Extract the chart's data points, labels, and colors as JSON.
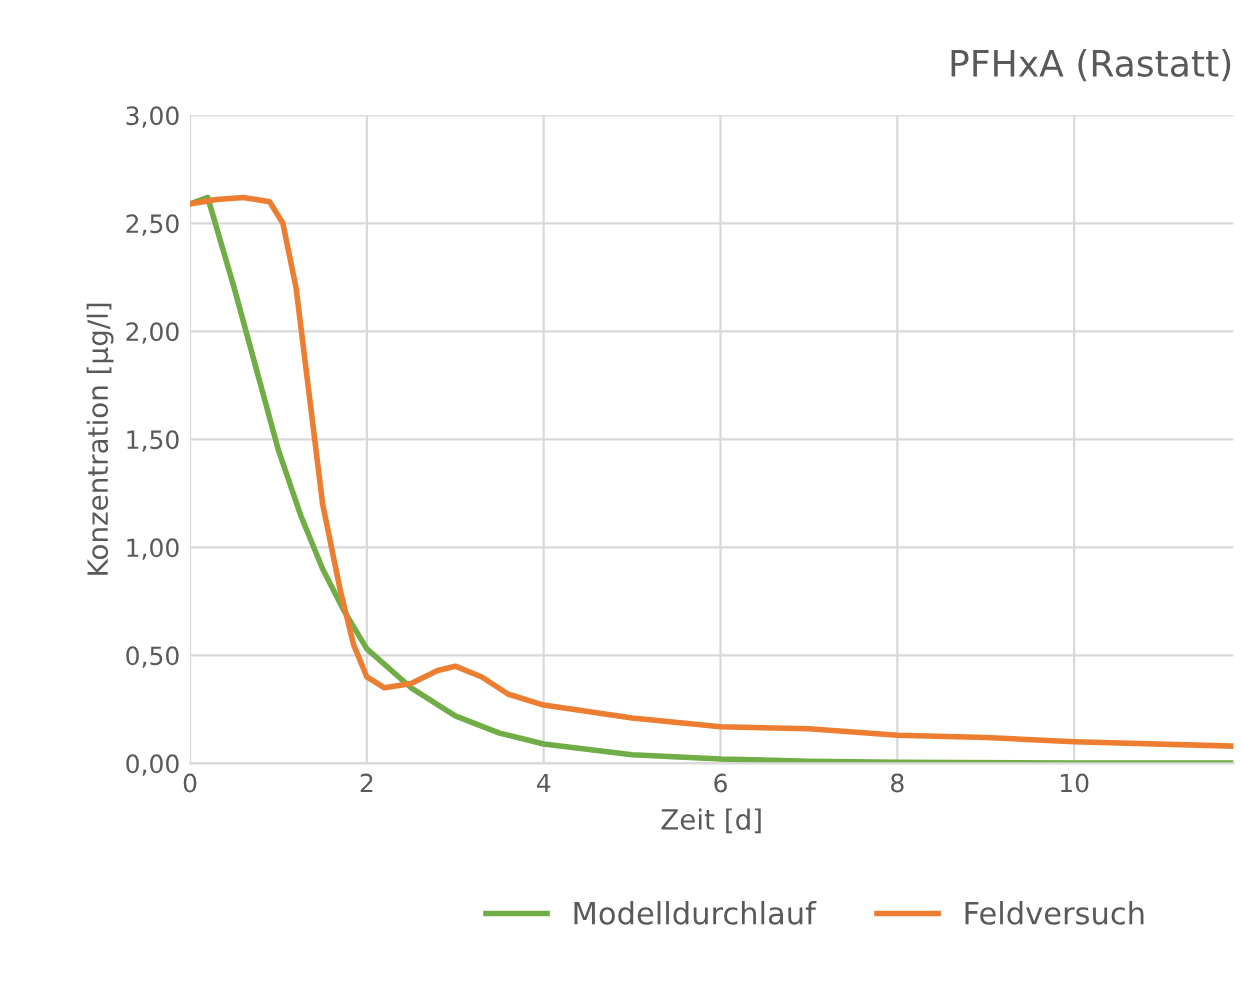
{
  "chart_data": {
    "type": "line",
    "title": "PFHxA (Rastatt)",
    "xlabel": "Zeit [d]",
    "ylabel": "Konzentration [µg/l]",
    "xlim": [
      0,
      11.8
    ],
    "xticks": [
      0,
      2,
      4,
      6,
      8,
      10
    ],
    "ylim": [
      0,
      3
    ],
    "yticks": [
      {
        "value": 0,
        "label": "0,00"
      },
      {
        "value": 0.5,
        "label": "0,50"
      },
      {
        "value": 1,
        "label": "1,00"
      },
      {
        "value": 1.5,
        "label": "1,50"
      },
      {
        "value": 2,
        "label": "2,00"
      },
      {
        "value": 2.5,
        "label": "2,50"
      },
      {
        "value": 3,
        "label": "3,00"
      }
    ],
    "grid": true,
    "legend": "bottom",
    "marker": "none",
    "line_style": "solid",
    "series": [
      {
        "name": "Modelldurchlauf",
        "color": "#70ad47",
        "x": [
          0,
          0.2,
          0.5,
          0.8,
          1.0,
          1.25,
          1.5,
          1.75,
          2,
          2.5,
          3,
          3.5,
          4,
          5,
          6,
          7,
          8,
          10,
          11.8
        ],
        "values": [
          2.59,
          2.62,
          2.2,
          1.75,
          1.45,
          1.15,
          0.9,
          0.7,
          0.53,
          0.35,
          0.22,
          0.14,
          0.09,
          0.04,
          0.02,
          0.01,
          0.005,
          0.002,
          0.002
        ]
      },
      {
        "name": "Feldversuch",
        "color": "#ed7d31",
        "x": [
          0,
          0.3,
          0.6,
          0.9,
          1.05,
          1.2,
          1.35,
          1.5,
          1.7,
          1.85,
          2.0,
          2.2,
          2.5,
          2.8,
          3.0,
          3.3,
          3.6,
          4,
          5,
          6,
          7,
          8,
          9,
          10,
          11.8
        ],
        "values": [
          2.59,
          2.61,
          2.62,
          2.6,
          2.5,
          2.2,
          1.7,
          1.2,
          0.8,
          0.55,
          0.4,
          0.35,
          0.37,
          0.43,
          0.45,
          0.4,
          0.32,
          0.27,
          0.21,
          0.17,
          0.16,
          0.13,
          0.12,
          0.1,
          0.08
        ]
      }
    ]
  }
}
